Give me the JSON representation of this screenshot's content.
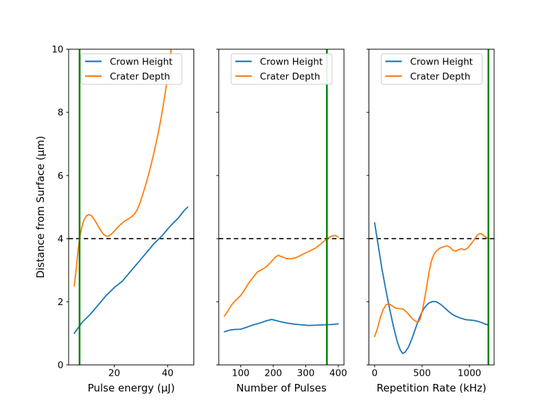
{
  "figure": {
    "ylabel": "Distance from Surface (μm)",
    "colors": {
      "crown_height": "#1f77b4",
      "crater_depth": "#ff7f0e",
      "marker_vline": "#008000",
      "threshold_hline": "#000000",
      "spine": "#000000",
      "legend_border": "#cccccc",
      "background": "#ffffff"
    }
  },
  "chart_data": [
    {
      "type": "line",
      "id": "pulse-energy",
      "xlabel": "Pulse energy (μJ)",
      "xlim": [
        2.9,
        49.8
      ],
      "ylim": [
        0,
        10
      ],
      "xticks": [
        20,
        40
      ],
      "yticks": [
        0,
        2,
        4,
        6,
        8,
        10
      ],
      "show_ytick_labels": true,
      "grid": false,
      "legend_position": "upper-left",
      "hline": 4,
      "vline": 7,
      "series": [
        {
          "name": "Crown Height",
          "key": "crown-height",
          "color": "#1f77b4",
          "x": [
            5,
            8,
            11,
            14,
            17,
            20,
            23,
            26,
            29,
            32,
            35,
            38,
            41,
            44,
            46,
            47.5
          ],
          "y": [
            1.0,
            1.35,
            1.6,
            1.9,
            2.2,
            2.45,
            2.65,
            2.95,
            3.25,
            3.55,
            3.85,
            4.1,
            4.4,
            4.65,
            4.87,
            5.0
          ]
        },
        {
          "name": "Crater Depth",
          "key": "crater-depth",
          "color": "#ff7f0e",
          "x": [
            5,
            5.7,
            6.4,
            7.1,
            7.8,
            8.6,
            9.5,
            10.5,
            11.4,
            12.4,
            13.4,
            14.4,
            15.4,
            16.2,
            17,
            17.8,
            18.6,
            19.6,
            21,
            22.4,
            23.8,
            25.2,
            26.6,
            27.6,
            28.6,
            29.6,
            30.6,
            31.6,
            32.6,
            33.6,
            34.6,
            35.6,
            36.6,
            37.6,
            38.6,
            39.6,
            40.6,
            41.5
          ],
          "y": [
            2.5,
            3.0,
            3.6,
            4.05,
            4.35,
            4.58,
            4.72,
            4.76,
            4.73,
            4.62,
            4.48,
            4.33,
            4.2,
            4.12,
            4.08,
            4.08,
            4.12,
            4.2,
            4.33,
            4.45,
            4.55,
            4.62,
            4.7,
            4.78,
            4.92,
            5.12,
            5.38,
            5.65,
            5.95,
            6.28,
            6.62,
            7.0,
            7.4,
            7.85,
            8.35,
            8.9,
            9.5,
            10.15
          ]
        }
      ]
    },
    {
      "type": "line",
      "id": "number-of-pulses",
      "xlabel": "Number of Pulses",
      "xlim": [
        32.5,
        417.5
      ],
      "ylim": [
        0,
        10
      ],
      "xticks": [
        100,
        200,
        300,
        400
      ],
      "yticks": [
        0,
        2,
        4,
        6,
        8,
        10
      ],
      "show_ytick_labels": false,
      "grid": false,
      "legend_position": "upper-left",
      "hline": 4,
      "vline": 365,
      "series": [
        {
          "name": "Crown Height",
          "key": "crown-height",
          "color": "#1f77b4",
          "x": [
            50,
            65,
            80,
            100,
            120,
            140,
            160,
            180,
            195,
            210,
            225,
            245,
            265,
            285,
            310,
            335,
            360,
            380,
            400
          ],
          "y": [
            1.05,
            1.1,
            1.12,
            1.13,
            1.2,
            1.27,
            1.33,
            1.4,
            1.44,
            1.4,
            1.36,
            1.32,
            1.29,
            1.27,
            1.25,
            1.26,
            1.27,
            1.28,
            1.3
          ]
        },
        {
          "name": "Crater Depth",
          "key": "crater-depth",
          "color": "#ff7f0e",
          "x": [
            50,
            60,
            72,
            85,
            100,
            112,
            125,
            140,
            152,
            165,
            178,
            192,
            205,
            215,
            228,
            240,
            255,
            270,
            285,
            300,
            315,
            330,
            345,
            358,
            368,
            380,
            390,
            400
          ],
          "y": [
            1.55,
            1.7,
            1.9,
            2.05,
            2.2,
            2.38,
            2.6,
            2.8,
            2.95,
            3.02,
            3.1,
            3.25,
            3.4,
            3.47,
            3.42,
            3.37,
            3.36,
            3.4,
            3.47,
            3.55,
            3.62,
            3.7,
            3.82,
            3.93,
            4.02,
            4.08,
            4.1,
            4.05
          ]
        }
      ]
    },
    {
      "type": "line",
      "id": "repetition-rate",
      "xlabel": "Repetition Rate (kHz)",
      "xlim": [
        -60,
        1260
      ],
      "ylim": [
        0,
        10
      ],
      "xticks": [
        0,
        500,
        1000
      ],
      "yticks": [
        0,
        2,
        4,
        6,
        8,
        10
      ],
      "show_ytick_labels": false,
      "grid": false,
      "legend_position": "upper-left",
      "hline": 4,
      "vline": 1200,
      "series": [
        {
          "name": "Crown Height",
          "key": "crown-height",
          "color": "#1f77b4",
          "x": [
            0,
            40,
            80,
            120,
            160,
            200,
            240,
            270,
            295,
            320,
            355,
            390,
            425,
            460,
            490,
            520,
            550,
            580,
            615,
            650,
            690,
            730,
            770,
            810,
            850,
            890,
            930,
            970,
            1010,
            1060,
            1110,
            1160,
            1200
          ],
          "y": [
            4.5,
            3.75,
            3.0,
            2.35,
            1.75,
            1.2,
            0.72,
            0.48,
            0.36,
            0.4,
            0.55,
            0.8,
            1.1,
            1.4,
            1.62,
            1.78,
            1.9,
            1.97,
            2.01,
            2.0,
            1.93,
            1.83,
            1.72,
            1.62,
            1.55,
            1.5,
            1.46,
            1.43,
            1.42,
            1.4,
            1.36,
            1.3,
            1.26
          ]
        },
        {
          "name": "Crater Depth",
          "key": "crater-depth",
          "color": "#ff7f0e",
          "x": [
            0,
            30,
            60,
            90,
            120,
            150,
            185,
            220,
            260,
            300,
            335,
            370,
            405,
            435,
            460,
            480,
            500,
            525,
            550,
            575,
            600,
            625,
            655,
            690,
            725,
            760,
            795,
            825,
            855,
            885,
            915,
            945,
            980,
            1015,
            1050,
            1080,
            1105,
            1130,
            1160,
            1200
          ],
          "y": [
            0.9,
            1.15,
            1.5,
            1.75,
            1.9,
            1.94,
            1.87,
            1.8,
            1.78,
            1.77,
            1.68,
            1.56,
            1.44,
            1.38,
            1.35,
            1.45,
            1.68,
            2.05,
            2.5,
            2.95,
            3.3,
            3.5,
            3.62,
            3.7,
            3.74,
            3.77,
            3.73,
            3.63,
            3.6,
            3.65,
            3.68,
            3.64,
            3.7,
            3.82,
            3.97,
            4.1,
            4.16,
            4.15,
            4.07,
            4.0
          ]
        }
      ]
    }
  ]
}
